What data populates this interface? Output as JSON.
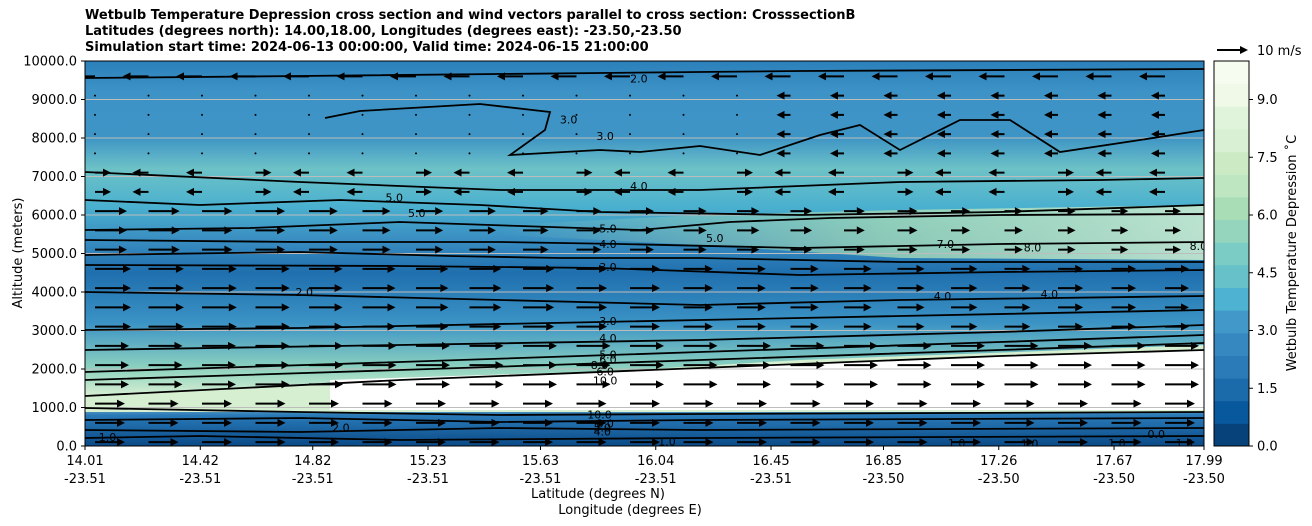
{
  "chart_data": {
    "type": "contour",
    "title_lines": [
      "Wetbulb Temperature Depression cross section and wind vectors parallel to cross section: CrosssectionB",
      "Latitudes (degrees north): 14.00,18.00, Longitudes (degrees east): -23.50,-23.50",
      "Simulation start time: 2024-06-13 00:00:00, Valid time: 2024-06-15 21:00:00"
    ],
    "ylabel": "Altitude (meters)",
    "xlabel_lat": "Latitude (degrees N)",
    "xlabel_lon": "Longitude (degrees E)",
    "ylim": [
      0,
      10000
    ],
    "y_ticks": [
      "0.0",
      "1000.0",
      "2000.0",
      "3000.0",
      "4000.0",
      "5000.0",
      "6000.0",
      "7000.0",
      "8000.0",
      "9000.0",
      "10000.0"
    ],
    "y_tick_values": [
      0,
      1000,
      2000,
      3000,
      4000,
      5000,
      6000,
      7000,
      8000,
      9000,
      10000
    ],
    "x_ticks_lat": [
      "14.01",
      "14.42",
      "14.82",
      "15.23",
      "15.63",
      "16.04",
      "16.45",
      "16.85",
      "17.26",
      "17.67",
      "17.99"
    ],
    "x_ticks_lon": [
      "-23.51",
      "-23.51",
      "-23.51",
      "-23.51",
      "-23.51",
      "-23.51",
      "-23.51",
      "-23.50",
      "-23.50",
      "-23.50",
      "-23.50"
    ],
    "x_tick_values": [
      14.01,
      14.42,
      14.82,
      15.23,
      15.63,
      16.04,
      16.45,
      16.85,
      17.26,
      17.67,
      17.99
    ],
    "xlim": [
      14.01,
      17.99
    ],
    "grid": "horizontal",
    "colorbar": {
      "label": "Wetbulb Temperature Depression ˚C",
      "ticks": [
        "0.0",
        "1.5",
        "3.0",
        "4.5",
        "6.0",
        "7.5",
        "9.0"
      ],
      "tick_values": [
        0,
        1.5,
        3,
        4.5,
        6,
        7.5,
        9
      ],
      "range": [
        0,
        10
      ],
      "colors": [
        "#08427b",
        "#08589e",
        "#1b6aa9",
        "#2b7bb8",
        "#3589c0",
        "#4298c8",
        "#4eb3d3",
        "#66c2c8",
        "#7bccc4",
        "#95d5bd",
        "#a8ddb5",
        "#bee6c0",
        "#ccebc5",
        "#daf0d4",
        "#e0f3db",
        "#f0f9e8",
        "#f7fcf0"
      ]
    },
    "quiver_key": {
      "label": "10 m/s",
      "value": 10
    },
    "contour_labels": [
      {
        "text": "2.0",
        "x": 15.98,
        "y": 9550
      },
      {
        "text": "3.0",
        "x": 15.73,
        "y": 8480
      },
      {
        "text": "3.0",
        "x": 15.86,
        "y": 8050
      },
      {
        "text": "5.0",
        "x": 15.11,
        "y": 6450
      },
      {
        "text": "5.0",
        "x": 15.19,
        "y": 6050
      },
      {
        "text": "4.0",
        "x": 15.98,
        "y": 6750
      },
      {
        "text": "5.0",
        "x": 15.87,
        "y": 5650
      },
      {
        "text": "4.0",
        "x": 15.87,
        "y": 5250
      },
      {
        "text": "5.0",
        "x": 16.25,
        "y": 5400
      },
      {
        "text": "3.0",
        "x": 15.87,
        "y": 4650
      },
      {
        "text": "7.0",
        "x": 17.07,
        "y": 5250
      },
      {
        "text": "8.0",
        "x": 17.38,
        "y": 5150
      },
      {
        "text": "8.0",
        "x": 17.97,
        "y": 5200
      },
      {
        "text": "2.0",
        "x": 14.79,
        "y": 4000
      },
      {
        "text": "4.0",
        "x": 17.06,
        "y": 3900
      },
      {
        "text": "4.0",
        "x": 17.44,
        "y": 3950
      },
      {
        "text": "3.0",
        "x": 15.87,
        "y": 3250
      },
      {
        "text": "4.0",
        "x": 15.87,
        "y": 2800
      },
      {
        "text": "5.0",
        "x": 15.87,
        "y": 2380
      },
      {
        "text": "6.0",
        "x": 15.87,
        "y": 2250
      },
      {
        "text": "8.0",
        "x": 15.84,
        "y": 2100
      },
      {
        "text": "6.0",
        "x": 15.86,
        "y": 1930
      },
      {
        "text": "10.0",
        "x": 15.86,
        "y": 1700
      },
      {
        "text": "10.0",
        "x": 15.84,
        "y": 820
      },
      {
        "text": "8.0",
        "x": 15.86,
        "y": 580
      },
      {
        "text": "5.0",
        "x": 15.85,
        "y": 480
      },
      {
        "text": "4.0",
        "x": 15.85,
        "y": 380
      },
      {
        "text": "2.0",
        "x": 14.92,
        "y": 480
      },
      {
        "text": "1.0",
        "x": 14.09,
        "y": 230
      },
      {
        "text": "1.0",
        "x": 16.08,
        "y": 120
      },
      {
        "text": "1.0",
        "x": 17.11,
        "y": 80
      },
      {
        "text": "1.0",
        "x": 17.37,
        "y": 60
      },
      {
        "text": "1.0",
        "x": 17.68,
        "y": 80
      },
      {
        "text": "0.0",
        "x": 17.82,
        "y": 310
      },
      {
        "text": "1.0",
        "x": 17.92,
        "y": 80
      }
    ]
  }
}
